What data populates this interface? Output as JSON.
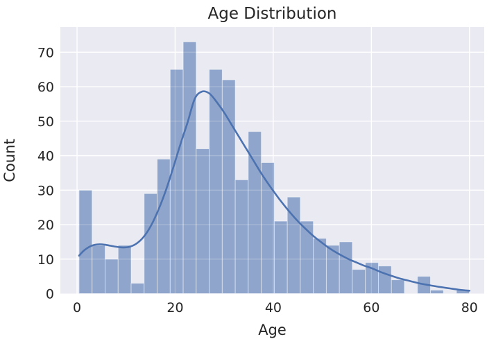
{
  "figure": {
    "title": "Age Distribution",
    "xlabel": "Age",
    "ylabel": "Count"
  },
  "chart_data": {
    "type": "bar",
    "subtype": "histogram_with_kde",
    "title": "Age Distribution",
    "xlabel": "Age",
    "ylabel": "Count",
    "histogram": {
      "bin_start": 0.42,
      "bin_width": 2.6527,
      "counts": [
        30,
        14,
        10,
        14,
        3,
        29,
        39,
        65,
        73,
        42,
        65,
        62,
        33,
        47,
        38,
        21,
        28,
        21,
        16,
        14,
        15,
        7,
        9,
        8,
        4,
        0,
        5,
        1,
        0,
        1
      ]
    },
    "kde": {
      "x": [
        0.42,
        1.5,
        3,
        4.5,
        6,
        7.5,
        9,
        10.5,
        12,
        13.5,
        15,
        16.5,
        18,
        19.5,
        21,
        22.5,
        24,
        25.5,
        27,
        28.5,
        30,
        31.5,
        33,
        34.5,
        36,
        37.5,
        39,
        40.5,
        42,
        43.5,
        45,
        46.5,
        48,
        49.5,
        51,
        52.5,
        54,
        55.5,
        57,
        58.5,
        60,
        62,
        64,
        66,
        68,
        70,
        72,
        74,
        76,
        78,
        80
      ],
      "y": [
        11.0,
        12.6,
        13.9,
        14.3,
        14.1,
        13.7,
        13.4,
        13.5,
        14.4,
        16.3,
        19.5,
        24.0,
        29.5,
        36.0,
        43.0,
        49.5,
        56.5,
        58.6,
        58.0,
        55.5,
        52.5,
        49.0,
        45.5,
        42.0,
        38.5,
        35.0,
        31.8,
        28.8,
        26.0,
        23.4,
        21.0,
        18.9,
        16.9,
        15.2,
        13.6,
        12.2,
        11.0,
        9.9,
        9.0,
        8.1,
        7.4,
        6.2,
        5.2,
        4.3,
        3.6,
        2.9,
        2.4,
        1.9,
        1.5,
        1.1,
        0.85
      ]
    },
    "xticks": [
      0,
      20,
      40,
      60,
      80
    ],
    "yticks": [
      0,
      10,
      20,
      30,
      40,
      50,
      60,
      70
    ],
    "xlim": [
      -3.4,
      83.0
    ],
    "ylim": [
      0,
      77.3
    ],
    "grid": true,
    "legend": "none",
    "colors": {
      "plot_bg": "#EAEAF2",
      "grid_line": "#FFFFFF",
      "bar_fill": "#8FA5CB",
      "bar_edge": "rgba(255,255,255,0.5)",
      "kde_line": "#4C72B0",
      "text": "#262626"
    }
  }
}
